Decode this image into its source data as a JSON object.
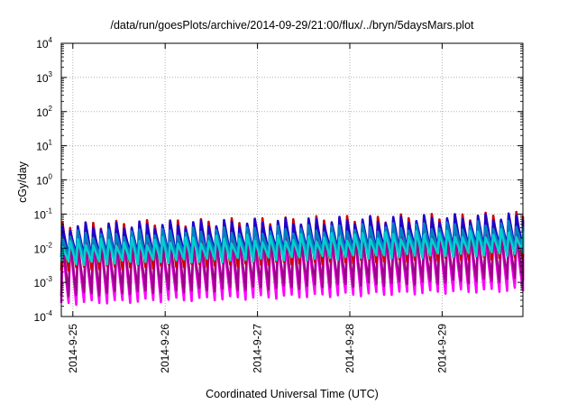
{
  "chart_data": {
    "type": "line",
    "title": "/data/run/goesPlots/archive/2014-09-29/21:00/flux/../bryn/5daysMars.plot",
    "xlabel": "Coordinated Universal Time (UTC)",
    "ylabel": "cGy/day",
    "y_scale": "log",
    "ylim_exponents": [
      -4,
      4
    ],
    "y_ticks": [
      {
        "base": "10",
        "exp": "4"
      },
      {
        "base": "10",
        "exp": "3"
      },
      {
        "base": "10",
        "exp": "2"
      },
      {
        "base": "10",
        "exp": "1"
      },
      {
        "base": "10",
        "exp": "0"
      },
      {
        "base": "10",
        "exp": "-1"
      },
      {
        "base": "10",
        "exp": "-2"
      },
      {
        "base": "10",
        "exp": "-3"
      },
      {
        "base": "10",
        "exp": "-4"
      }
    ],
    "x_range_days": [
      "2014-09-24 21:00",
      "2014-09-29 21:00"
    ],
    "x_ticks": [
      "2014-9-25",
      "2014-9-26",
      "2014-9-27",
      "2014-9-28",
      "2014-9-29"
    ],
    "grid": true,
    "oscillation_period_hours": 2.0,
    "series": [
      {
        "color": "#ff00ff",
        "peak_log": [
          -1.9,
          -1.6
        ],
        "trough_log": [
          -3.6,
          -3.2
        ]
      },
      {
        "color": "#a0008c",
        "peak_log": [
          -1.8,
          -1.5
        ],
        "trough_log": [
          -3.35,
          -2.9
        ]
      },
      {
        "color": "#d00000",
        "peak_log": [
          -1.35,
          -1.05
        ],
        "trough_log": [
          -2.6,
          -2.25
        ]
      },
      {
        "color": "#2000c8",
        "peak_log": [
          -1.38,
          -1.08
        ],
        "trough_log": [
          -2.25,
          -1.95
        ]
      },
      {
        "color": "#0080c0",
        "peak_log": [
          -1.6,
          -1.3
        ],
        "trough_log": [
          -2.3,
          -2.0
        ]
      },
      {
        "color": "#00d0d0",
        "peak_log": [
          -1.85,
          -1.55
        ],
        "trough_log": [
          -2.45,
          -2.15
        ]
      }
    ]
  }
}
